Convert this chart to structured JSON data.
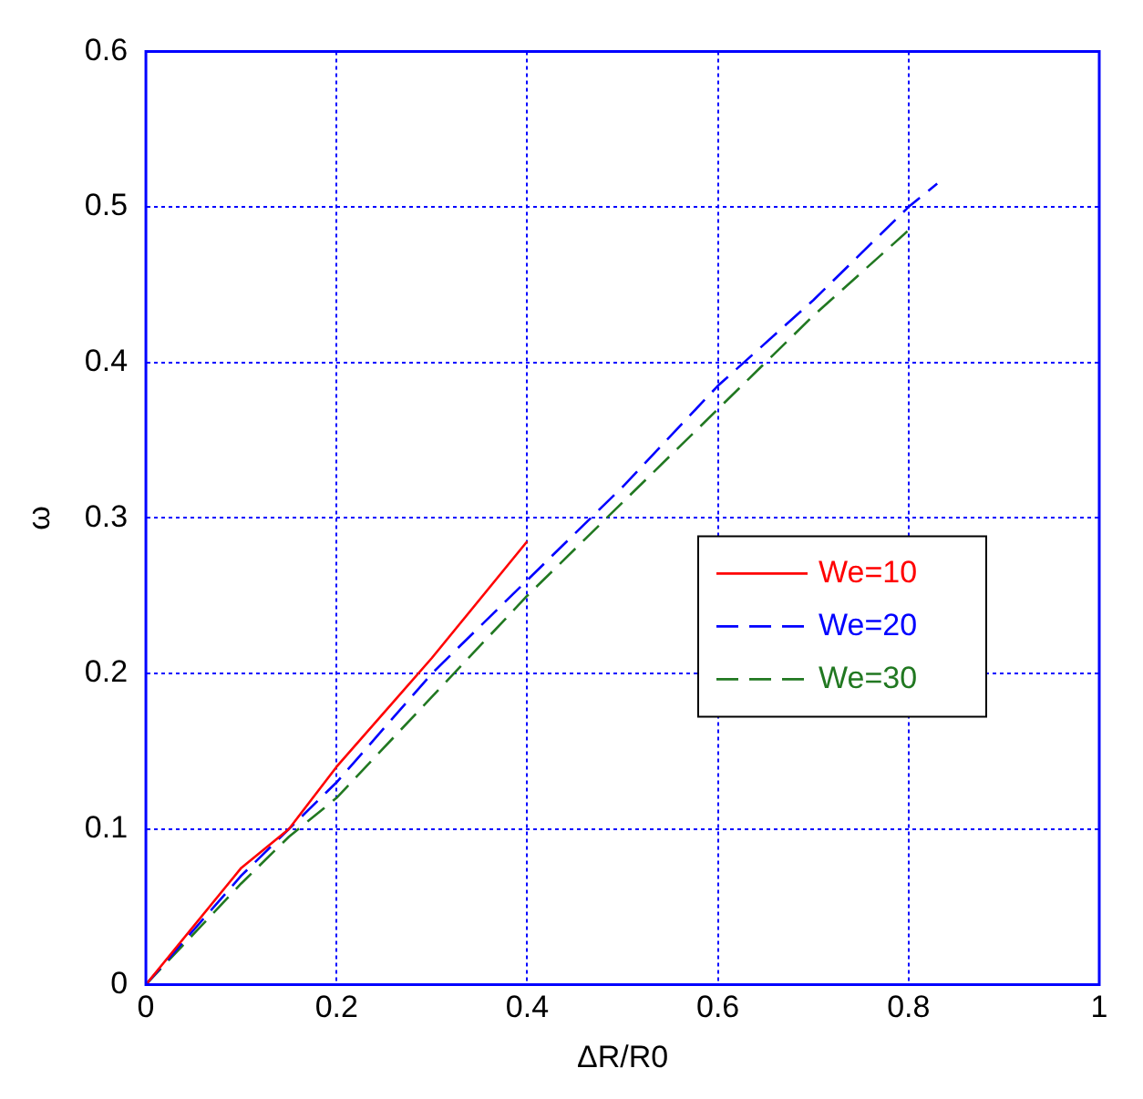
{
  "chart_data": {
    "type": "line",
    "xlabel": "ΔR/R0",
    "ylabel": "ω",
    "xlim": [
      0,
      1
    ],
    "ylim": [
      0,
      0.6
    ],
    "xticks": [
      0,
      0.2,
      0.4,
      0.6,
      0.8,
      1
    ],
    "yticks": [
      0,
      0.1,
      0.2,
      0.3,
      0.4,
      0.5,
      0.6
    ],
    "grid": true,
    "legend": "center right",
    "marker": "none",
    "series": [
      {
        "name": "We=10",
        "color": "#ff0000",
        "line_style": "solid",
        "x": [
          0,
          0.1,
          0.15,
          0.2,
          0.3,
          0.4
        ],
        "values": [
          0,
          0.075,
          0.1,
          0.14,
          0.21,
          0.285
        ]
      },
      {
        "name": "We=20",
        "color": "#0000ff",
        "line_style": "dashed",
        "x": [
          0,
          0.1,
          0.15,
          0.2,
          0.3,
          0.4,
          0.5,
          0.6,
          0.7,
          0.8,
          0.83
        ],
        "values": [
          0,
          0.07,
          0.1,
          0.13,
          0.2,
          0.26,
          0.32,
          0.385,
          0.44,
          0.5,
          0.515
        ]
      },
      {
        "name": "We=30",
        "color": "#217821",
        "line_style": "dashed",
        "x": [
          0,
          0.1,
          0.15,
          0.2,
          0.3,
          0.4,
          0.5,
          0.6,
          0.7,
          0.8
        ],
        "values": [
          0,
          0.065,
          0.095,
          0.12,
          0.185,
          0.25,
          0.31,
          0.37,
          0.43,
          0.485
        ]
      }
    ]
  }
}
